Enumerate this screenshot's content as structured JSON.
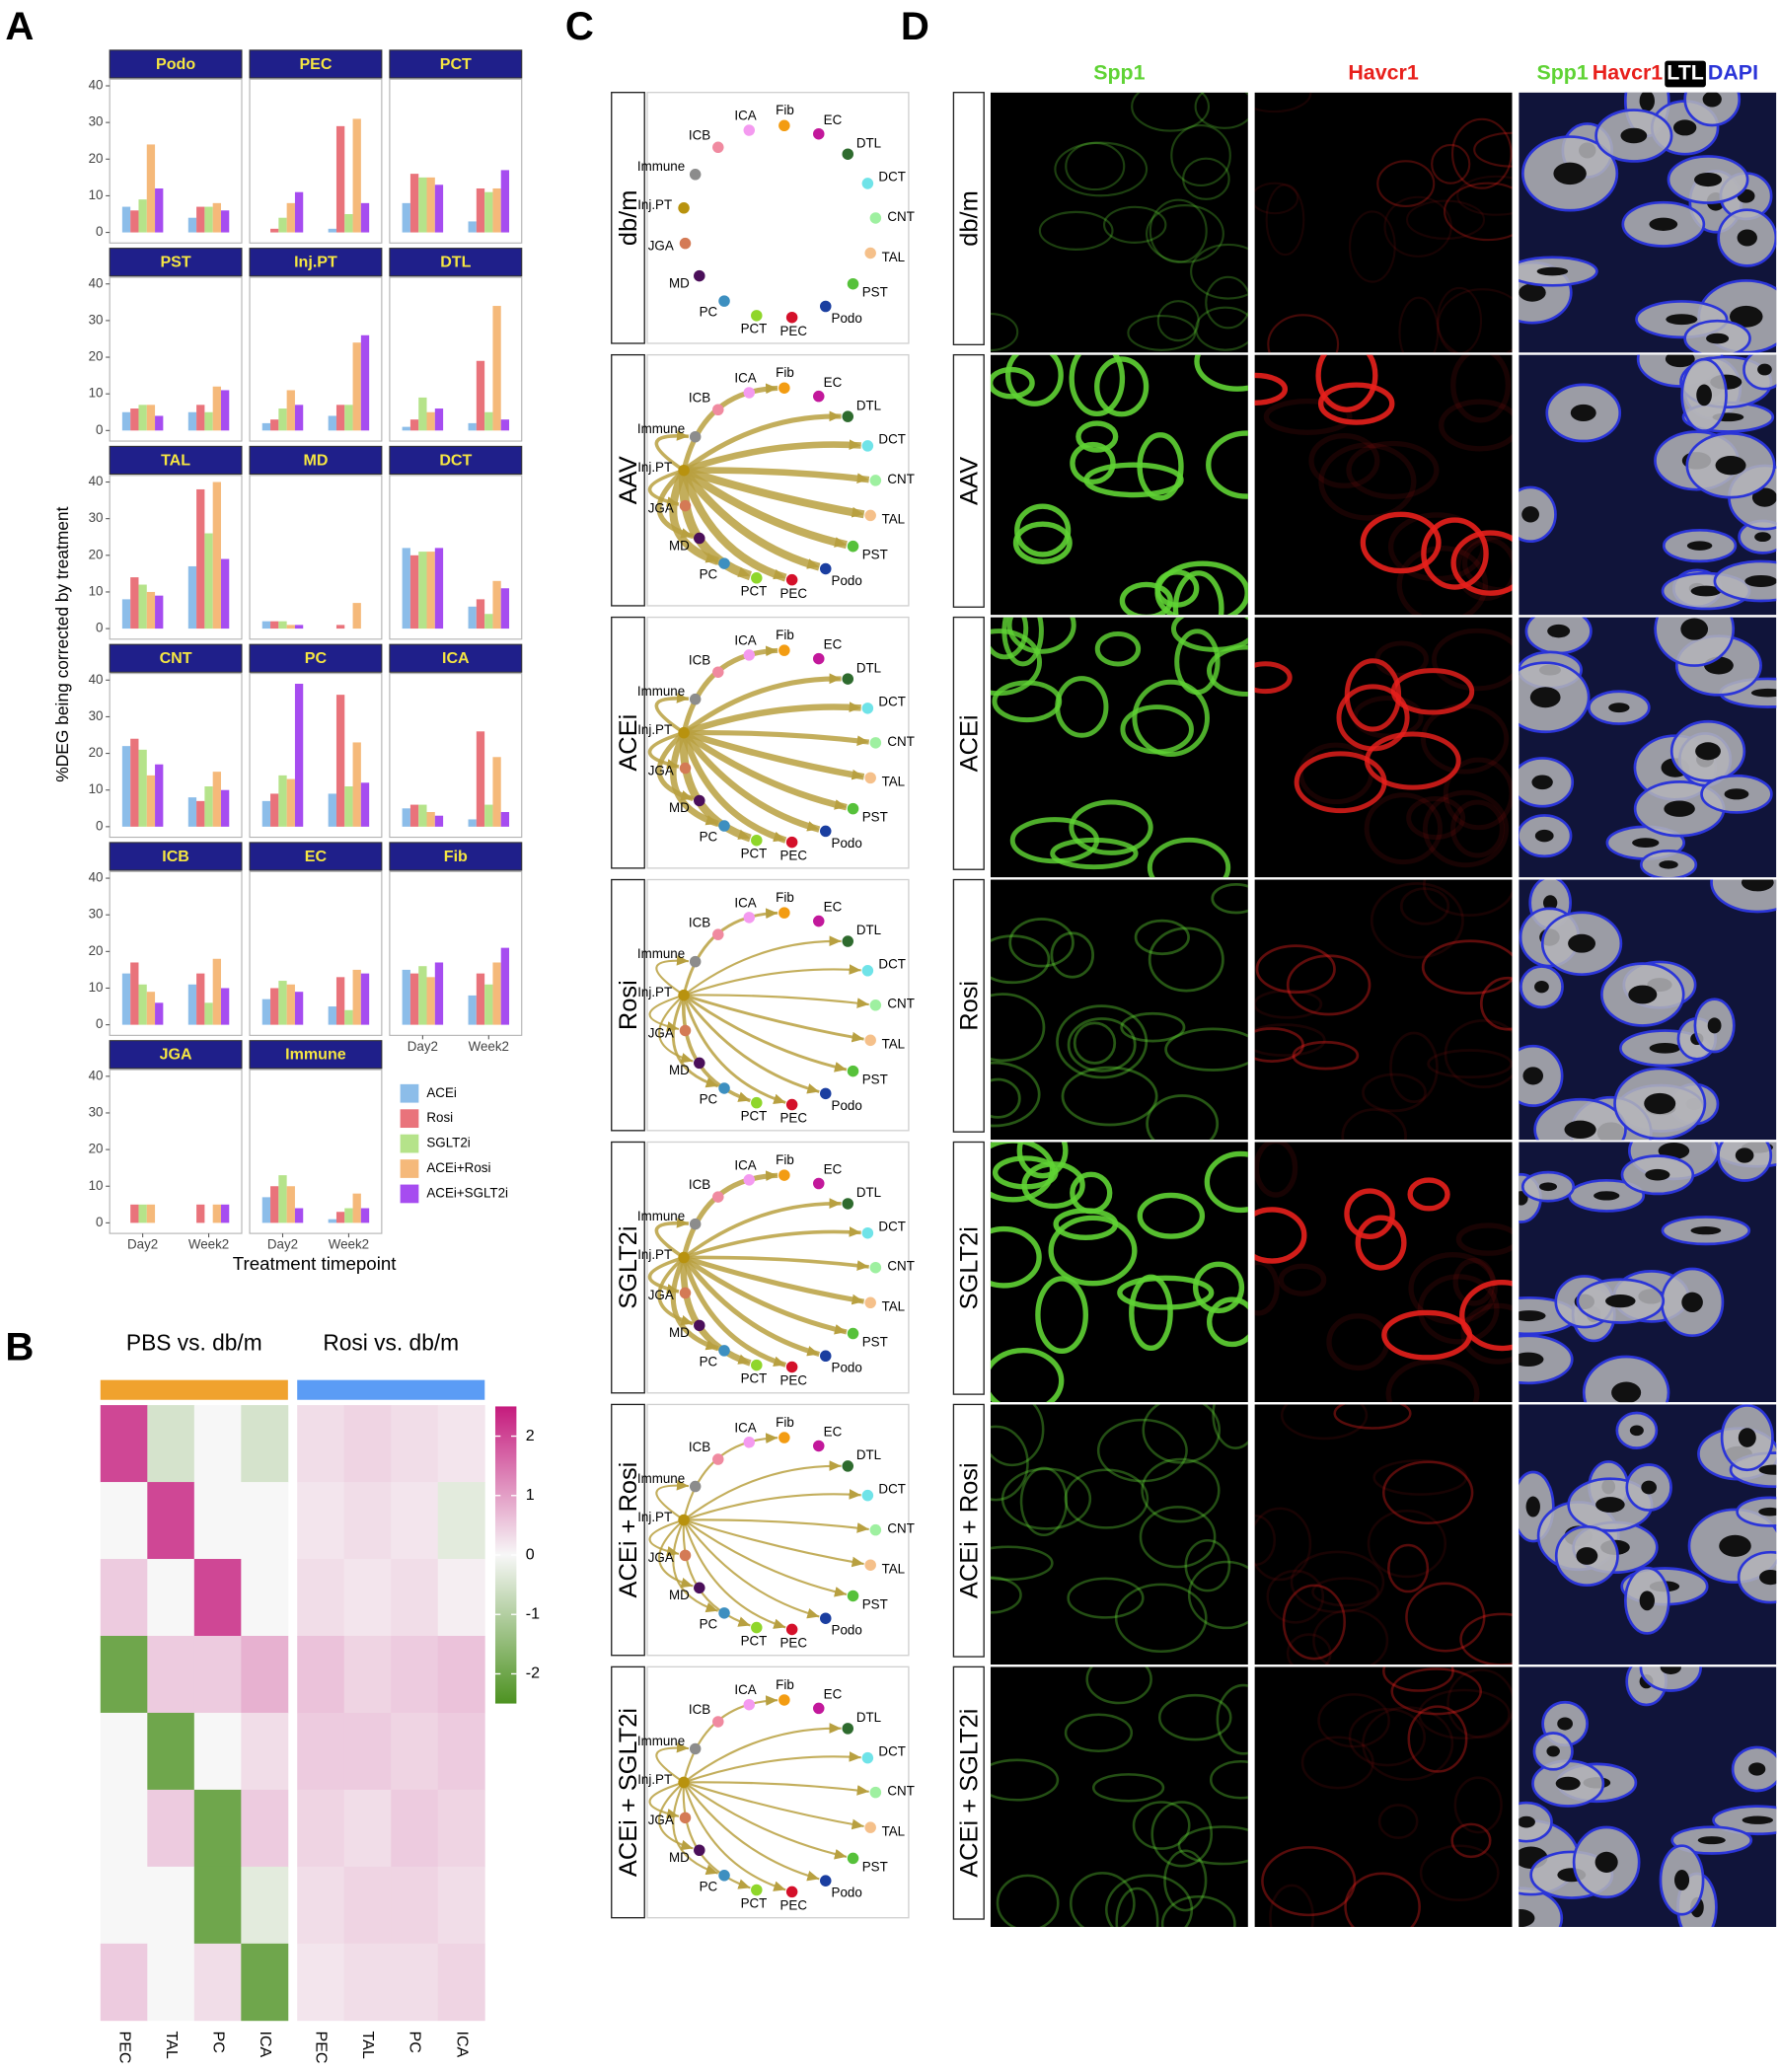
{
  "panel_labels": [
    "A",
    "B",
    "C",
    "D"
  ],
  "chart_data": [
    {
      "type": "bar",
      "ylabel": "%DEG being corrected by treatment",
      "xlabel": "Treatment timepoint",
      "categories": [
        "Day2",
        "Week2"
      ],
      "ylim": [
        0,
        40
      ],
      "yticks": [
        0,
        10,
        20,
        30,
        40
      ],
      "legend": "right",
      "series": [
        {
          "name": "ACEi",
          "color": "#8cbde9"
        },
        {
          "name": "Rosi",
          "color": "#e9737b"
        },
        {
          "name": "SGLT2i",
          "color": "#b5e38a"
        },
        {
          "name": "ACEi+Rosi",
          "color": "#f5b97a"
        },
        {
          "name": "ACEi+SGLT2i",
          "color": "#a64cf0"
        }
      ],
      "facets": [
        {
          "title": "Podo",
          "values": [
            [
              7,
              6,
              9,
              24,
              12
            ],
            [
              4,
              7,
              7,
              8,
              6
            ]
          ]
        },
        {
          "title": "PEC",
          "values": [
            [
              0,
              1,
              4,
              8,
              11
            ],
            [
              1,
              29,
              5,
              31,
              8
            ]
          ]
        },
        {
          "title": "PCT",
          "values": [
            [
              8,
              16,
              15,
              15,
              13
            ],
            [
              3,
              12,
              11,
              12,
              17
            ]
          ]
        },
        {
          "title": "PST",
          "values": [
            [
              5,
              6,
              7,
              7,
              4
            ],
            [
              5,
              7,
              5,
              12,
              11
            ]
          ]
        },
        {
          "title": "Inj.PT",
          "values": [
            [
              2,
              3,
              6,
              11,
              7
            ],
            [
              4,
              7,
              7,
              24,
              26
            ]
          ]
        },
        {
          "title": "DTL",
          "values": [
            [
              1,
              3,
              9,
              5,
              6
            ],
            [
              2,
              19,
              5,
              34,
              3
            ]
          ]
        },
        {
          "title": "TAL",
          "values": [
            [
              8,
              14,
              12,
              10,
              9
            ],
            [
              17,
              38,
              26,
              40,
              19
            ]
          ]
        },
        {
          "title": "MD",
          "values": [
            [
              2,
              2,
              2,
              1,
              1
            ],
            [
              0,
              1,
              0,
              7,
              0
            ]
          ]
        },
        {
          "title": "DCT",
          "values": [
            [
              22,
              20,
              21,
              21,
              22
            ],
            [
              6,
              8,
              4,
              13,
              11
            ]
          ]
        },
        {
          "title": "CNT",
          "values": [
            [
              22,
              24,
              21,
              14,
              17
            ],
            [
              8,
              7,
              11,
              15,
              10
            ]
          ]
        },
        {
          "title": "PC",
          "values": [
            [
              7,
              9,
              14,
              13,
              39
            ],
            [
              9,
              36,
              11,
              23,
              12
            ]
          ]
        },
        {
          "title": "ICA",
          "values": [
            [
              5,
              6,
              6,
              4,
              3
            ],
            [
              2,
              26,
              6,
              19,
              4
            ]
          ]
        },
        {
          "title": "ICB",
          "values": [
            [
              14,
              17,
              11,
              9,
              6
            ],
            [
              11,
              14,
              6,
              18,
              10
            ]
          ]
        },
        {
          "title": "EC",
          "values": [
            [
              7,
              10,
              12,
              11,
              9
            ],
            [
              5,
              13,
              4,
              15,
              14
            ]
          ]
        },
        {
          "title": "Fib",
          "values": [
            [
              15,
              14,
              16,
              13,
              17
            ],
            [
              8,
              14,
              11,
              17,
              21
            ]
          ]
        },
        {
          "title": "JGA",
          "values": [
            [
              0,
              5,
              5,
              5,
              0
            ],
            [
              0,
              5,
              0,
              5,
              5
            ]
          ]
        },
        {
          "title": "Immune",
          "values": [
            [
              7,
              10,
              13,
              10,
              4
            ],
            [
              1,
              3,
              4,
              8,
              4
            ]
          ]
        }
      ]
    },
    {
      "type": "heatmap",
      "clim": [
        -2.5,
        2.5
      ],
      "cticks": [
        2,
        1,
        0,
        -1,
        -2
      ],
      "colors": [
        "#4d9221",
        "#f7f7f7",
        "#c51b7d"
      ],
      "groups": [
        {
          "title": "PBS vs. db/m",
          "color": "#f0a22e",
          "columns": [
            "PEC",
            "TAL",
            "PC",
            "ICA"
          ],
          "values": [
            [
              2,
              -0.5,
              0,
              -0.5
            ],
            [
              0,
              2,
              0,
              0
            ],
            [
              0.5,
              0,
              2,
              0
            ],
            [
              -2,
              0.5,
              0.5,
              0.8
            ],
            [
              0,
              -2,
              0,
              0.3
            ],
            [
              0,
              0.5,
              -2,
              0.5
            ],
            [
              0,
              0,
              -2,
              -0.3
            ],
            [
              0.5,
              0,
              0.3,
              -2
            ]
          ]
        },
        {
          "title": "Rosi vs. db/m",
          "color": "#5b9cf5",
          "columns": [
            "PEC",
            "TAL",
            "PC",
            "ICA"
          ],
          "values": [
            [
              0.3,
              0.4,
              0.3,
              0.2
            ],
            [
              0.2,
              0.3,
              0.2,
              -0.3
            ],
            [
              0.3,
              0.2,
              0.3,
              0.1
            ],
            [
              0.6,
              0.4,
              0.5,
              0.6
            ],
            [
              0.5,
              0.5,
              0.4,
              0.5
            ],
            [
              0.4,
              0.3,
              0.5,
              0.4
            ],
            [
              0.3,
              0.4,
              0.4,
              0.3
            ],
            [
              0.2,
              0.3,
              0.3,
              0.4
            ]
          ]
        }
      ]
    }
  ],
  "networks": {
    "source": 13,
    "edge_color": "#b8a040",
    "nodes": [
      {
        "label": "Fib",
        "color": "#f39c12"
      },
      {
        "label": "EC",
        "color": "#c2189b"
      },
      {
        "label": "DTL",
        "color": "#2e6b2e"
      },
      {
        "label": "DCT",
        "color": "#6fe3e8"
      },
      {
        "label": "CNT",
        "color": "#9ef0a0"
      },
      {
        "label": "TAL",
        "color": "#f5c08a"
      },
      {
        "label": "PST",
        "color": "#56c13a"
      },
      {
        "label": "Podo",
        "color": "#1a3ea0"
      },
      {
        "label": "PEC",
        "color": "#d4102a"
      },
      {
        "label": "PCT",
        "color": "#8fd62a"
      },
      {
        "label": "PC",
        "color": "#3d8fc0"
      },
      {
        "label": "MD",
        "color": "#4b0f5a"
      },
      {
        "label": "JGA",
        "color": "#d47a55"
      },
      {
        "label": "Inj.PT",
        "color": "#b8920e"
      },
      {
        "label": "Immune",
        "color": "#8c8c8c"
      },
      {
        "label": "ICB",
        "color": "#f08aa0"
      },
      {
        "label": "ICA",
        "color": "#f49af0"
      }
    ],
    "panels": [
      {
        "label": "db/m"
      },
      {
        "label": "AAV",
        "weights": [
          3,
          null,
          3,
          4,
          4,
          5,
          5,
          5,
          5,
          6,
          5,
          3,
          2,
          null,
          2,
          null,
          null
        ]
      },
      {
        "label": "ACEi",
        "weights": [
          3,
          null,
          3,
          4,
          3,
          4,
          4,
          4,
          4,
          5,
          4,
          3,
          2,
          null,
          2,
          null,
          null
        ]
      },
      {
        "label": "Rosi",
        "weights": [
          1.5,
          null,
          1,
          1,
          1,
          1.5,
          1.5,
          1.5,
          1.5,
          2,
          1.5,
          1,
          1,
          null,
          1,
          null,
          null
        ]
      },
      {
        "label": "SGLT2i",
        "weights": [
          3,
          null,
          2,
          2,
          2,
          3,
          3,
          3,
          3,
          4,
          3,
          2,
          2,
          null,
          2,
          null,
          null
        ]
      },
      {
        "label": "ACEi + Rosi",
        "weights": [
          1,
          null,
          1,
          1,
          1,
          1,
          1,
          1,
          1,
          1,
          1,
          1,
          1,
          null,
          1,
          null,
          null
        ]
      },
      {
        "label": "ACEi + SGLT2i",
        "weights": [
          1,
          null,
          1,
          1,
          1,
          1,
          1,
          1,
          1,
          1,
          1,
          1,
          1,
          null,
          1,
          null,
          null
        ]
      }
    ]
  },
  "micrographs": {
    "columns": [
      {
        "label": "Spp1",
        "color": "#5fd334"
      },
      {
        "label": "Havcr1",
        "color": "#e8201c"
      }
    ],
    "merge": [
      {
        "label": "Spp1",
        "color": "#5fd334"
      },
      {
        "label": "Havcr1",
        "color": "#e8201c"
      },
      {
        "label": "LTL",
        "color": "#ffffff"
      },
      {
        "label": "DAPI",
        "color": "#2b35d8"
      }
    ]
  }
}
